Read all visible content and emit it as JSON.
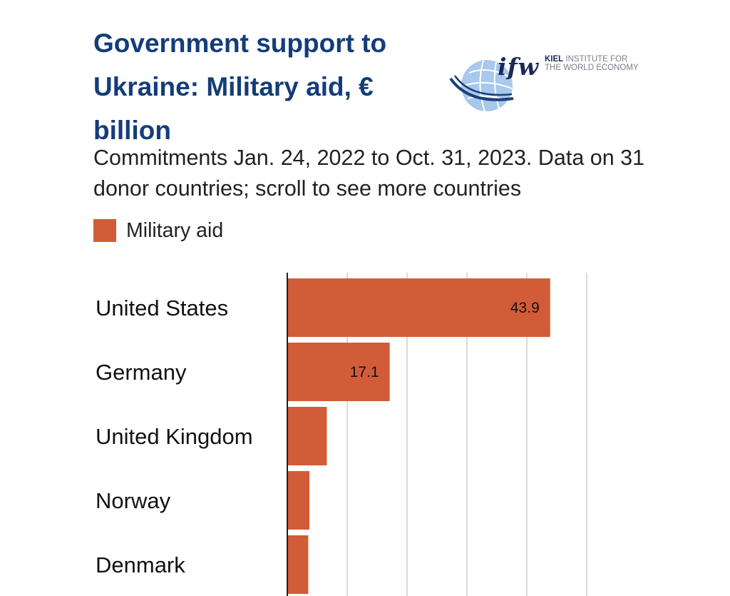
{
  "header": {
    "title": "Government support to Ukraine: Military aid, € billion",
    "subtitle": "Commitments Jan. 24, 2022 to Oct. 31, 2023. Data on 31 donor countries; scroll to see more countries"
  },
  "logo": {
    "wordmark": "ifw",
    "institute_line1_bold": "KIEL",
    "institute_line1": " INSTITUTE FOR",
    "institute_line2": "THE WORLD ECONOMY"
  },
  "legend": {
    "label": "Military aid",
    "color": "#d35c38"
  },
  "chart_data": {
    "type": "bar",
    "orientation": "horizontal",
    "categories": [
      "United States",
      "Germany",
      "United Kingdom",
      "Norway",
      "Denmark"
    ],
    "series": [
      {
        "name": "Military aid",
        "values": [
          43.9,
          17.1,
          6.6,
          3.7,
          3.5
        ],
        "color": "#d35c38"
      }
    ],
    "data_labels": [
      "43.9",
      "17.1",
      "",
      "",
      ""
    ],
    "xlim": [
      0,
      50
    ],
    "grid": true,
    "legend_position": "top-left"
  }
}
